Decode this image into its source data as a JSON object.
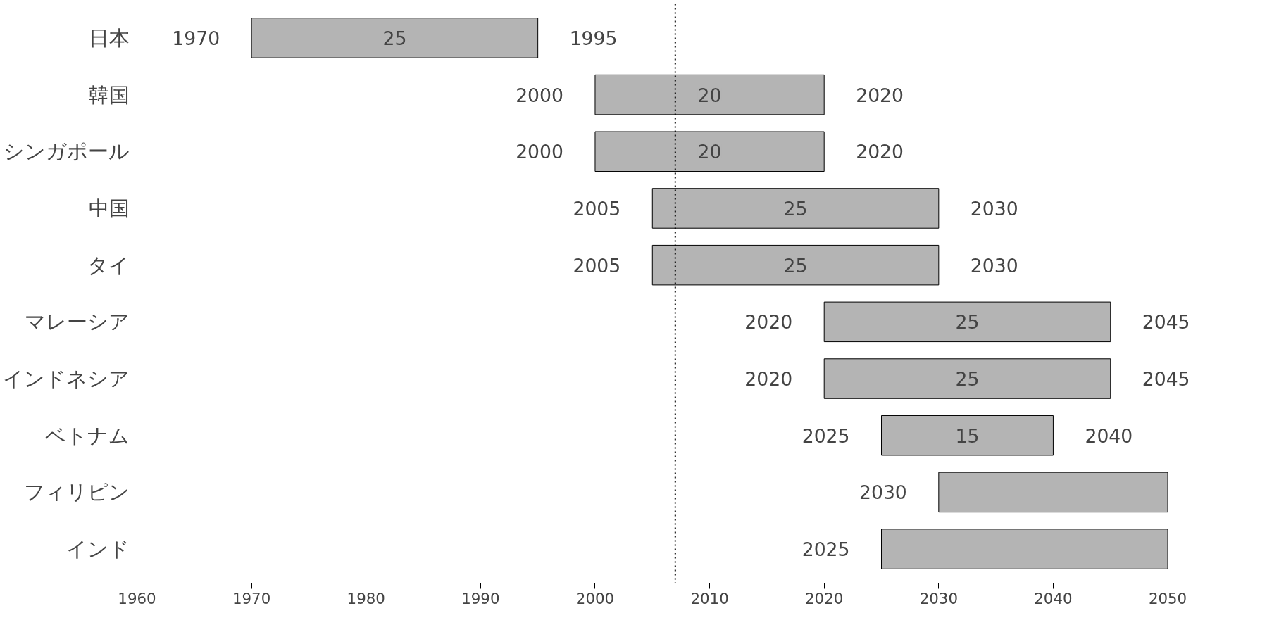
{
  "chart_data": {
    "type": "bar",
    "orientation": "horizontal",
    "categories": [
      "日本",
      "韓国",
      "シンガポール",
      "中国",
      "タイ",
      "マレーシア",
      "インドネシア",
      "ベトナム",
      "フィリピン",
      "インド"
    ],
    "base": [
      1970,
      2000,
      2000,
      2005,
      2005,
      2020,
      2020,
      2025,
      2030,
      2025
    ],
    "values": [
      25,
      20,
      20,
      25,
      25,
      25,
      25,
      15,
      20,
      25
    ],
    "value_labels": [
      "25",
      "20",
      "20",
      "25",
      "25",
      "25",
      "25",
      "15",
      null,
      null
    ],
    "color": "#b4b4b4",
    "xlim": [
      1960,
      2050
    ],
    "xticks": [
      1960,
      1970,
      1980,
      1990,
      2000,
      2010,
      2020,
      2030,
      2040,
      2050
    ],
    "grid": false,
    "ref_lines": [
      {
        "axis": "x",
        "value": 2007,
        "label": null,
        "line_style": "dotted",
        "color": "#000000"
      }
    ],
    "annotations": [
      {
        "text": "1970",
        "x": 1970,
        "y": "日本"
      },
      {
        "text": "1995",
        "x": 1995,
        "y": "日本"
      },
      {
        "text": "2000",
        "x": 2000,
        "y": "韓国"
      },
      {
        "text": "2020",
        "x": 2020,
        "y": "韓国"
      },
      {
        "text": "2000",
        "x": 2000,
        "y": "シンガポール"
      },
      {
        "text": "2020",
        "x": 2020,
        "y": "シンガポール"
      },
      {
        "text": "2005",
        "x": 2005,
        "y": "中国"
      },
      {
        "text": "2030",
        "x": 2030,
        "y": "中国"
      },
      {
        "text": "2005",
        "x": 2005,
        "y": "タイ"
      },
      {
        "text": "2030",
        "x": 2030,
        "y": "タイ"
      },
      {
        "text": "2020",
        "x": 2020,
        "y": "マレーシア"
      },
      {
        "text": "2045",
        "x": 2045,
        "y": "マレーシア"
      },
      {
        "text": "2020",
        "x": 2020,
        "y": "インドネシア"
      },
      {
        "text": "2045",
        "x": 2045,
        "y": "インドネシア"
      },
      {
        "text": "2025",
        "x": 2025,
        "y": "ベトナム"
      },
      {
        "text": "2040",
        "x": 2040,
        "y": "ベトナム"
      },
      {
        "text": "2030",
        "x": 2030,
        "y": "フィリピン"
      },
      {
        "text": "2025",
        "x": 2025,
        "y": "インド"
      }
    ]
  }
}
